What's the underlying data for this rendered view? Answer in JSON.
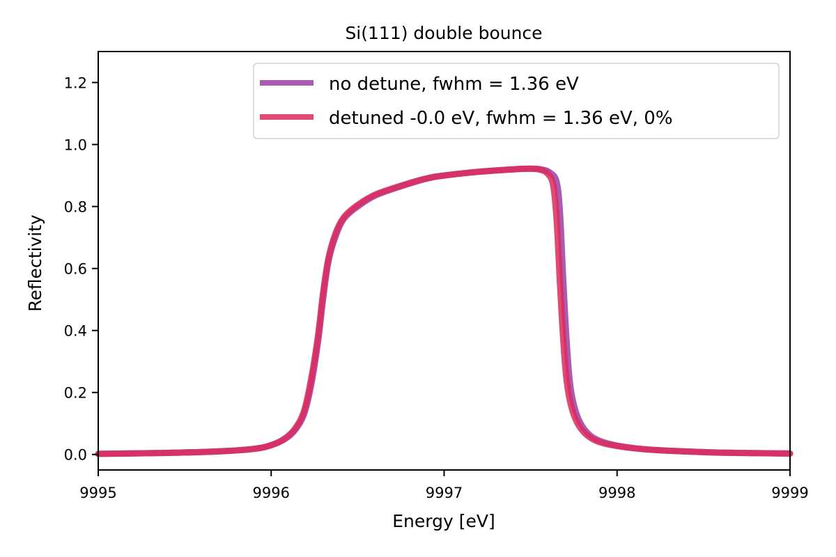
{
  "chart_data": {
    "type": "line",
    "title": "Si(111) double bounce",
    "xlabel": "Energy [eV]",
    "ylabel": "Reflectivity",
    "xlim": [
      9995,
      9999
    ],
    "ylim": [
      -0.05,
      1.3
    ],
    "xticks": [
      9995,
      9996,
      9997,
      9998,
      9999
    ],
    "xtick_labels": [
      "9995",
      "9996",
      "9997",
      "9998",
      "9999"
    ],
    "yticks": [
      0.0,
      0.2,
      0.4,
      0.6,
      0.8,
      1.0,
      1.2
    ],
    "ytick_labels": [
      "0.0",
      "0.2",
      "0.4",
      "0.6",
      "0.8",
      "1.0",
      "1.2"
    ],
    "grid": false,
    "legend_position": "top-right",
    "series": [
      {
        "name": "no detune, fwhm = 1.36 eV",
        "color": "#9b3fa6",
        "x": [
          9995.0,
          9995.4,
          9995.7,
          9995.9,
          9996.0,
          9996.08,
          9996.14,
          9996.19,
          9996.23,
          9996.27,
          9996.3,
          9996.33,
          9996.37,
          9996.42,
          9996.5,
          9996.6,
          9996.75,
          9996.9,
          9997.0,
          9997.2,
          9997.4,
          9997.5,
          9997.56,
          9997.61,
          9997.65,
          9997.67,
          9997.69,
          9997.71,
          9997.73,
          9997.76,
          9997.8,
          9997.86,
          9997.95,
          9998.1,
          9998.3,
          9998.6,
          9999.0
        ],
        "y": [
          0.002,
          0.005,
          0.01,
          0.018,
          0.03,
          0.05,
          0.08,
          0.13,
          0.22,
          0.36,
          0.5,
          0.62,
          0.7,
          0.76,
          0.8,
          0.835,
          0.865,
          0.89,
          0.9,
          0.912,
          0.92,
          0.922,
          0.92,
          0.91,
          0.88,
          0.78,
          0.55,
          0.35,
          0.22,
          0.14,
          0.09,
          0.055,
          0.035,
          0.02,
          0.012,
          0.006,
          0.003
        ]
      },
      {
        "name": "detuned -0.0 eV, fwhm = 1.36 eV, 0%",
        "color": "#dc2a5a",
        "x": [
          9995.0,
          9995.4,
          9995.7,
          9995.9,
          9996.0,
          9996.08,
          9996.14,
          9996.19,
          9996.23,
          9996.27,
          9996.3,
          9996.33,
          9996.37,
          9996.42,
          9996.5,
          9996.6,
          9996.75,
          9996.9,
          9997.0,
          9997.2,
          9997.4,
          9997.5,
          9997.56,
          9997.6,
          9997.63,
          9997.65,
          9997.67,
          9997.69,
          9997.71,
          9997.74,
          9997.78,
          9997.84,
          9997.93,
          9998.1,
          9998.3,
          9998.6,
          9999.0
        ],
        "y": [
          0.002,
          0.005,
          0.01,
          0.018,
          0.03,
          0.052,
          0.085,
          0.14,
          0.24,
          0.38,
          0.52,
          0.63,
          0.71,
          0.765,
          0.805,
          0.838,
          0.867,
          0.891,
          0.9,
          0.912,
          0.92,
          0.922,
          0.918,
          0.905,
          0.87,
          0.76,
          0.55,
          0.36,
          0.23,
          0.145,
          0.092,
          0.056,
          0.035,
          0.02,
          0.012,
          0.006,
          0.003
        ]
      }
    ]
  }
}
